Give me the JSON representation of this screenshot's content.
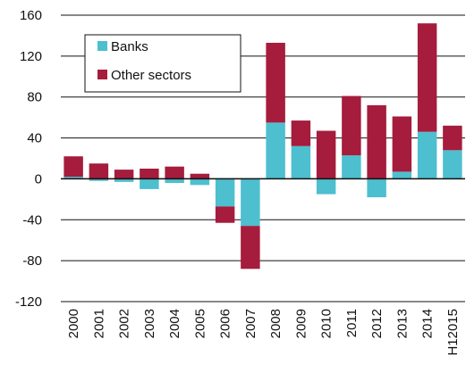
{
  "chart_data": {
    "type": "bar",
    "stacked": true,
    "categories": [
      "2000",
      "2001",
      "2002",
      "2003",
      "2004",
      "2005",
      "2006",
      "2007",
      "2008",
      "2009",
      "2010",
      "2011",
      "2012",
      "2013",
      "2014",
      "H12015"
    ],
    "series": [
      {
        "name": "Banks",
        "color": "#4dbfcf",
        "values": [
          2,
          -2,
          -3,
          -10,
          -4,
          -6,
          -27,
          -46,
          55,
          32,
          -15,
          23,
          -18,
          7,
          46,
          28
        ]
      },
      {
        "name": "Other sectors",
        "color": "#a51c3c",
        "values": [
          20,
          15,
          9,
          10,
          12,
          5,
          -16,
          -42,
          78,
          25,
          47,
          58,
          72,
          54,
          106,
          24
        ]
      }
    ],
    "ylim": [
      -120,
      160
    ],
    "yticks": [
      "160",
      "120",
      "80",
      "40",
      "0",
      "-40",
      "-80",
      "-120"
    ],
    "grid": true,
    "legend_position": "top-left"
  }
}
